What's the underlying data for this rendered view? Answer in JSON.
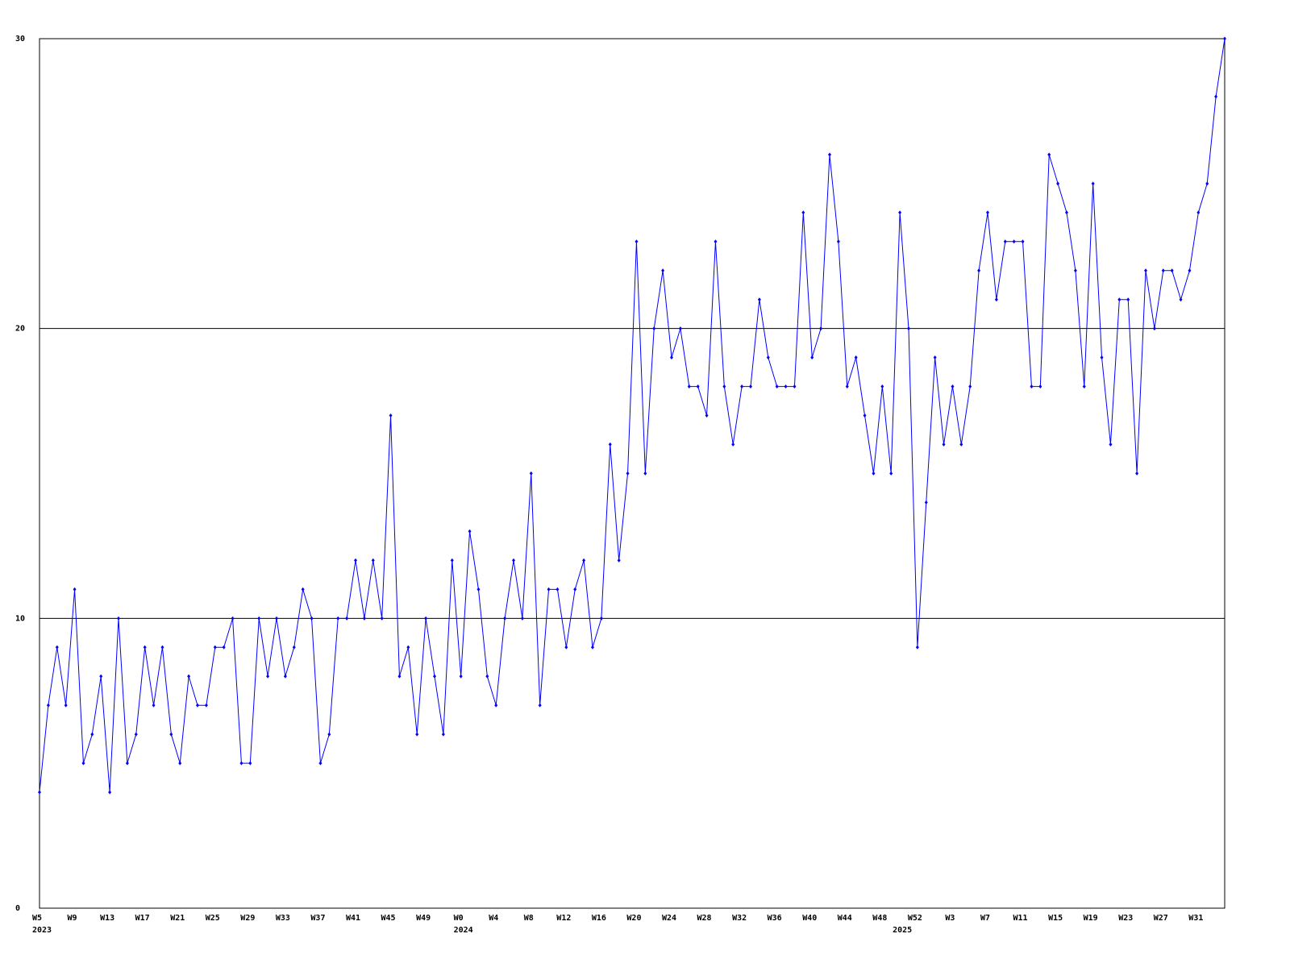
{
  "chart_data": {
    "type": "line",
    "categories": [
      "W5",
      null,
      null,
      null,
      "W9",
      null,
      null,
      null,
      "W13",
      null,
      null,
      null,
      "W17",
      null,
      null,
      null,
      "W21",
      null,
      null,
      null,
      "W25",
      null,
      null,
      null,
      "W29",
      null,
      null,
      null,
      "W33",
      null,
      null,
      null,
      "W37",
      null,
      null,
      null,
      "W41",
      null,
      null,
      null,
      "W45",
      null,
      null,
      null,
      "W49",
      null,
      null,
      null,
      "W0",
      null,
      null,
      null,
      "W4",
      null,
      null,
      null,
      "W8",
      null,
      null,
      null,
      "W12",
      null,
      null,
      null,
      "W16",
      null,
      null,
      null,
      "W20",
      null,
      null,
      null,
      "W24",
      null,
      null,
      null,
      "W28",
      null,
      null,
      null,
      "W32",
      null,
      null,
      null,
      "W36",
      null,
      null,
      null,
      "W40",
      null,
      null,
      null,
      "W44",
      null,
      null,
      null,
      "W48",
      null,
      null,
      null,
      "W52",
      null,
      null,
      null,
      "W3",
      null,
      null,
      null,
      "W7",
      null,
      null,
      null,
      "W11",
      null,
      null,
      null,
      "W15",
      null,
      null,
      null,
      "W19",
      null,
      null,
      null,
      "W23",
      null,
      null,
      null,
      "W27",
      null,
      null,
      null,
      "W31",
      null,
      null,
      null
    ],
    "category_years": [
      "2023",
      null,
      null,
      null,
      null,
      null,
      null,
      null,
      null,
      null,
      null,
      null,
      null,
      null,
      null,
      null,
      null,
      null,
      null,
      null,
      null,
      null,
      null,
      null,
      null,
      null,
      null,
      null,
      null,
      null,
      null,
      null,
      null,
      null,
      null,
      null,
      null,
      null,
      null,
      null,
      null,
      null,
      null,
      null,
      null,
      null,
      null,
      null,
      "2024",
      null,
      null,
      null,
      null,
      null,
      null,
      null,
      null,
      null,
      null,
      null,
      null,
      null,
      null,
      null,
      null,
      null,
      null,
      null,
      null,
      null,
      null,
      null,
      null,
      null,
      null,
      null,
      null,
      null,
      null,
      null,
      null,
      null,
      null,
      null,
      null,
      null,
      null,
      null,
      null,
      null,
      null,
      null,
      null,
      null,
      null,
      null,
      null,
      null,
      "2025",
      null,
      null,
      null,
      null,
      null,
      null,
      null,
      null,
      null,
      null,
      null,
      null,
      null,
      null,
      null,
      null,
      null,
      null,
      null,
      null,
      null,
      null,
      null,
      null,
      null,
      null,
      null,
      null,
      null,
      null,
      null,
      null,
      null,
      null,
      null
    ],
    "series": [
      {
        "color": "#0000ff",
        "values": [
          4,
          7,
          9,
          7,
          11,
          5,
          6,
          8,
          4,
          10,
          5,
          6,
          9,
          7,
          9,
          6,
          5,
          8,
          7,
          7,
          9,
          9,
          10,
          5,
          5,
          10,
          8,
          10,
          8,
          9,
          11,
          10,
          5,
          6,
          10,
          10,
          12,
          10,
          12,
          10,
          17,
          8,
          9,
          6,
          10,
          8,
          6,
          12,
          8,
          13,
          11,
          8,
          7,
          10,
          12,
          10,
          15,
          7,
          11,
          11,
          9,
          11,
          12,
          9,
          10,
          16,
          12,
          15,
          23,
          15,
          20,
          22,
          19,
          20,
          18,
          18,
          17,
          23,
          18,
          16,
          18,
          18,
          21,
          19,
          18,
          18,
          18,
          24,
          19,
          20,
          26,
          23,
          18,
          19,
          17,
          15,
          18,
          15,
          24,
          20,
          9,
          14,
          19,
          16,
          18,
          16,
          18,
          22,
          24,
          21,
          23,
          23,
          23,
          18,
          18,
          26,
          25,
          24,
          22,
          18,
          25,
          19,
          16,
          21,
          21,
          15,
          22,
          20,
          22,
          22,
          21,
          22,
          24,
          25,
          28,
          30
        ]
      }
    ],
    "ylim": [
      0,
      30
    ],
    "yticks": [
      0,
      10,
      20,
      30
    ],
    "grid": true
  }
}
